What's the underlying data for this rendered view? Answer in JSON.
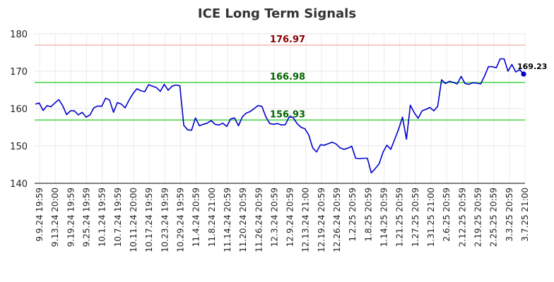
{
  "chart_data": {
    "type": "line",
    "title": "ICE Long Term Signals",
    "xlabel": "",
    "ylabel": "",
    "ylim": [
      140,
      180
    ],
    "yticks": [
      "140",
      "150",
      "160",
      "170",
      "180"
    ],
    "grid": true,
    "colors": {
      "line": "#0000cc",
      "resistance": "#f4b8b0",
      "support": "#6fdd6f",
      "resistance_text": "#8b0000",
      "support_text": "#006400"
    },
    "x_tick_labels": [
      "9.9.24 19:59",
      "9.13.24 20:00",
      "9.19.24 19:59",
      "9.25.24 19:59",
      "10.1.24 19:59",
      "10.7.24 19:59",
      "10.11.24 20:00",
      "10.17.24 19:59",
      "10.23.24 19:59",
      "10.29.24 19:59",
      "11.4.24 20:59",
      "11.8.24 21:00",
      "11.14.24 20:59",
      "11.20.24 20:59",
      "11.26.24 20:59",
      "12.3.24 20:59",
      "12.9.24 20:59",
      "12.13.24 21:00",
      "12.19.24 20:59",
      "12.26.24 20:59",
      "1.2.25 20:59",
      "1.8.25 20:59",
      "1.14.25 20:59",
      "1.21.25 20:59",
      "1.27.25 20:59",
      "1.31.25 21:00",
      "2.6.25 20:59",
      "2.12.25 20:59",
      "2.19.25 20:59",
      "2.25.25 20:59",
      "3.3.25 20:59",
      "3.7.25 21:00"
    ],
    "levels": [
      {
        "value": 176.97,
        "label": "176.97",
        "kind": "resistance"
      },
      {
        "value": 166.98,
        "label": "166.98",
        "kind": "support"
      },
      {
        "value": 156.93,
        "label": "156.93",
        "kind": "support"
      }
    ],
    "last_value_label": "169.23",
    "series": [
      {
        "values": [
          161.2,
          161.5,
          159.5,
          160.8,
          160.5,
          161.5,
          162.4,
          160.8,
          158.4,
          159.4,
          159.4,
          158.3,
          159.0,
          157.7,
          158.3,
          160.2,
          160.7,
          160.6,
          162.8,
          162.3,
          159.0,
          161.6,
          161.2,
          160.2,
          162.3,
          164.0,
          165.3,
          164.8,
          164.5,
          166.4,
          166.0,
          165.6,
          164.6,
          166.5,
          164.9,
          166.0,
          166.3,
          166.1,
          155.5,
          154.3,
          154.2,
          157.5,
          155.4,
          155.8,
          156.1,
          156.8,
          155.8,
          155.6,
          156.1,
          155.2,
          157.2,
          157.5,
          155.4,
          157.8,
          158.8,
          159.2,
          160.0,
          160.8,
          160.6,
          157.8,
          156.0,
          155.8,
          156.0,
          155.6,
          155.7,
          157.8,
          157.6,
          156.0,
          155.0,
          154.6,
          152.9,
          149.5,
          148.4,
          150.3,
          150.2,
          150.6,
          151.0,
          150.5,
          149.5,
          149.1,
          149.4,
          149.9,
          146.7,
          146.6,
          146.7,
          146.7,
          142.8,
          143.9,
          145.2,
          148.3,
          150.2,
          149.1,
          151.8,
          154.5,
          157.7,
          151.8,
          160.9,
          158.9,
          157.4,
          159.4,
          159.8,
          160.3,
          159.4,
          160.6,
          167.7,
          166.7,
          167.3,
          167.0,
          166.6,
          168.6,
          166.7,
          166.5,
          166.9,
          166.8,
          166.6,
          168.7,
          171.2,
          171.2,
          170.9,
          173.3,
          173.3,
          170.0,
          171.8,
          169.8,
          170.4,
          169.23
        ]
      }
    ]
  }
}
